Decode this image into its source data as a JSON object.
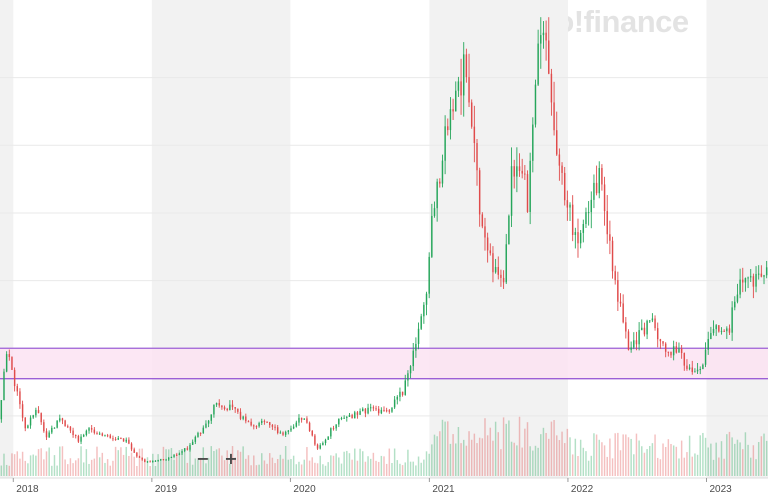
{
  "brand": {
    "watermark": "yahoo!finance"
  },
  "controls": {
    "zoom_out": "−",
    "zoom_in": "+"
  },
  "colors": {
    "up": "#26a65b",
    "down": "#e04b4b",
    "band_fill": "#fbe3f2",
    "band_line": "#9c5fd6",
    "shade": "#f2f2f2",
    "grid": "#e9e9e9"
  },
  "chart_data": {
    "type": "candlestick",
    "interval": "weekly",
    "x_range": [
      "2017-11-27",
      "2023-06-12"
    ],
    "y_range": [
      2000,
      70000
    ],
    "y_scale": "linear",
    "x_tick_labels": [
      "2018",
      "2019",
      "2020",
      "2021",
      "2022",
      "2023"
    ],
    "grid": true,
    "alternating_year_shading": true,
    "highlight_band": {
      "low": 15500,
      "high": 20000
    },
    "volume_panel": true,
    "price_keypoints": [
      [
        "2017-11-27",
        9500
      ],
      [
        "2017-12-18",
        19500
      ],
      [
        "2018-01-08",
        15000
      ],
      [
        "2018-02-05",
        8000
      ],
      [
        "2018-03-05",
        11000
      ],
      [
        "2018-04-02",
        7000
      ],
      [
        "2018-05-07",
        9600
      ],
      [
        "2018-06-25",
        6300
      ],
      [
        "2018-07-23",
        8200
      ],
      [
        "2018-09-03",
        7000
      ],
      [
        "2018-10-29",
        6400
      ],
      [
        "2018-11-26",
        4000
      ],
      [
        "2018-12-17",
        3200
      ],
      [
        "2019-02-11",
        3600
      ],
      [
        "2019-04-08",
        5200
      ],
      [
        "2019-05-27",
        8700
      ],
      [
        "2019-06-24",
        12000
      ],
      [
        "2019-08-05",
        11000
      ],
      [
        "2019-09-23",
        8500
      ],
      [
        "2019-10-28",
        9200
      ],
      [
        "2019-12-16",
        7200
      ],
      [
        "2020-02-10",
        10000
      ],
      [
        "2020-03-16",
        5000
      ],
      [
        "2020-05-04",
        9000
      ],
      [
        "2020-07-27",
        11000
      ],
      [
        "2020-09-14",
        10500
      ],
      [
        "2020-10-26",
        13500
      ],
      [
        "2020-11-23",
        19000
      ],
      [
        "2020-12-28",
        29000
      ],
      [
        "2021-01-11",
        38000
      ],
      [
        "2021-02-15",
        52000
      ],
      [
        "2021-03-15",
        58000
      ],
      [
        "2021-04-12",
        62000
      ],
      [
        "2021-05-17",
        40000
      ],
      [
        "2021-06-21",
        31000
      ],
      [
        "2021-07-19",
        30000
      ],
      [
        "2021-08-09",
        45000
      ],
      [
        "2021-09-06",
        47000
      ],
      [
        "2021-09-20",
        42000
      ],
      [
        "2021-10-18",
        64000
      ],
      [
        "2021-11-08",
        66000
      ],
      [
        "2021-12-06",
        49000
      ],
      [
        "2022-01-03",
        42000
      ],
      [
        "2022-01-24",
        36000
      ],
      [
        "2022-03-28",
        46000
      ],
      [
        "2022-05-09",
        30000
      ],
      [
        "2022-06-13",
        20000
      ],
      [
        "2022-07-25",
        23000
      ],
      [
        "2022-08-15",
        24000
      ],
      [
        "2022-09-19",
        19000
      ],
      [
        "2022-10-24",
        20500
      ],
      [
        "2022-11-14",
        16500
      ],
      [
        "2022-12-19",
        16800
      ],
      [
        "2023-01-23",
        23000
      ],
      [
        "2023-03-06",
        22000
      ],
      [
        "2023-03-20",
        28000
      ],
      [
        "2023-04-17",
        30000
      ],
      [
        "2023-06-12",
        31000
      ]
    ]
  }
}
